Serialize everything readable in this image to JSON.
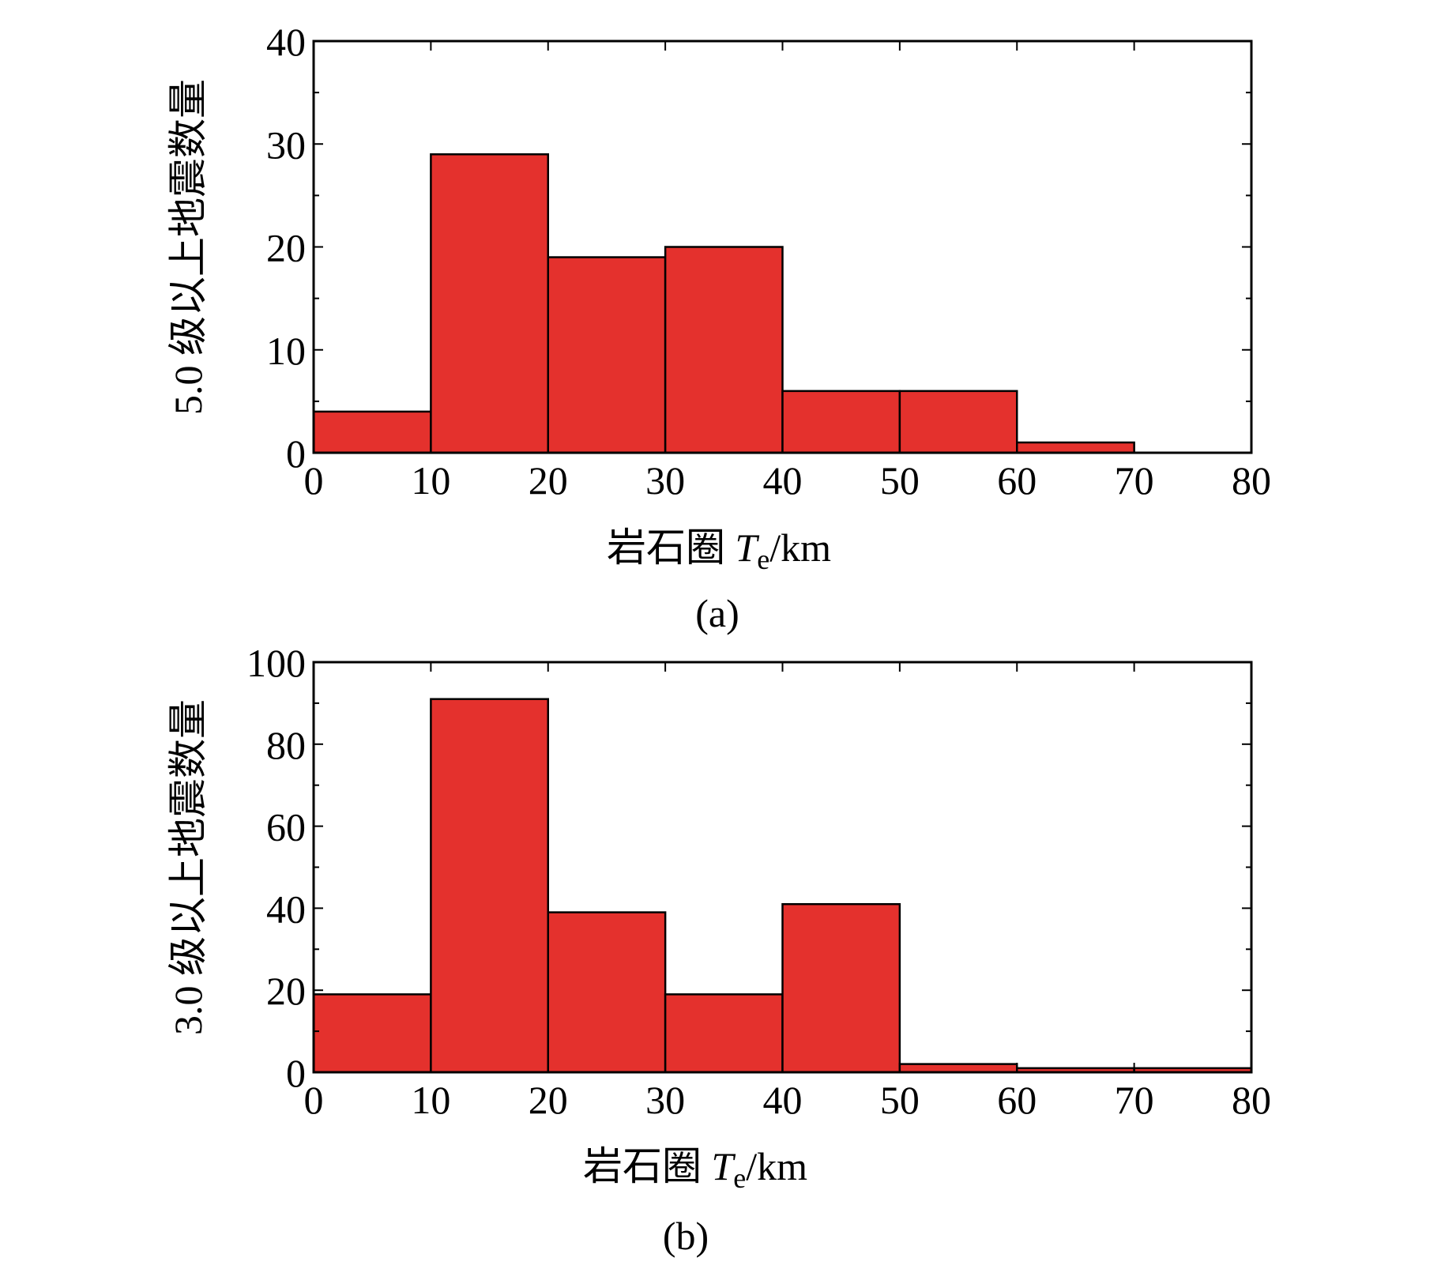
{
  "colors": {
    "bar": "#e4312d",
    "stroke": "#000000",
    "background": "#ffffff"
  },
  "chart_data": [
    {
      "type": "bar",
      "panel_label": "(a)",
      "xlabel_prefix": "岩石圈 ",
      "xlabel_var": "T",
      "xlabel_sub": "e",
      "xlabel_unit": "/km",
      "ylabel": "5.0 级以上地震数量",
      "bin_edges": [
        0,
        10,
        20,
        30,
        40,
        50,
        60,
        70,
        80
      ],
      "values": [
        4,
        29,
        19,
        20,
        6,
        6,
        1,
        0
      ],
      "xlim": [
        0,
        80
      ],
      "ylim": [
        0,
        40
      ],
      "xticks": [
        0,
        10,
        20,
        30,
        40,
        50,
        60,
        70,
        80
      ],
      "yticks": [
        0,
        10,
        20,
        30,
        40
      ],
      "grid": false
    },
    {
      "type": "bar",
      "panel_label": "(b)",
      "xlabel_prefix": "岩石圈 ",
      "xlabel_var": "T",
      "xlabel_sub": "e",
      "xlabel_unit": "/km",
      "ylabel": "3.0 级以上地震数量",
      "bin_edges": [
        0,
        10,
        20,
        30,
        40,
        50,
        60,
        70,
        80
      ],
      "values": [
        19,
        91,
        39,
        19,
        41,
        2,
        1,
        1
      ],
      "xlim": [
        0,
        80
      ],
      "ylim": [
        0,
        100
      ],
      "xticks": [
        0,
        10,
        20,
        30,
        40,
        50,
        60,
        70,
        80
      ],
      "yticks": [
        0,
        20,
        40,
        60,
        80,
        100
      ],
      "grid": false
    }
  ]
}
